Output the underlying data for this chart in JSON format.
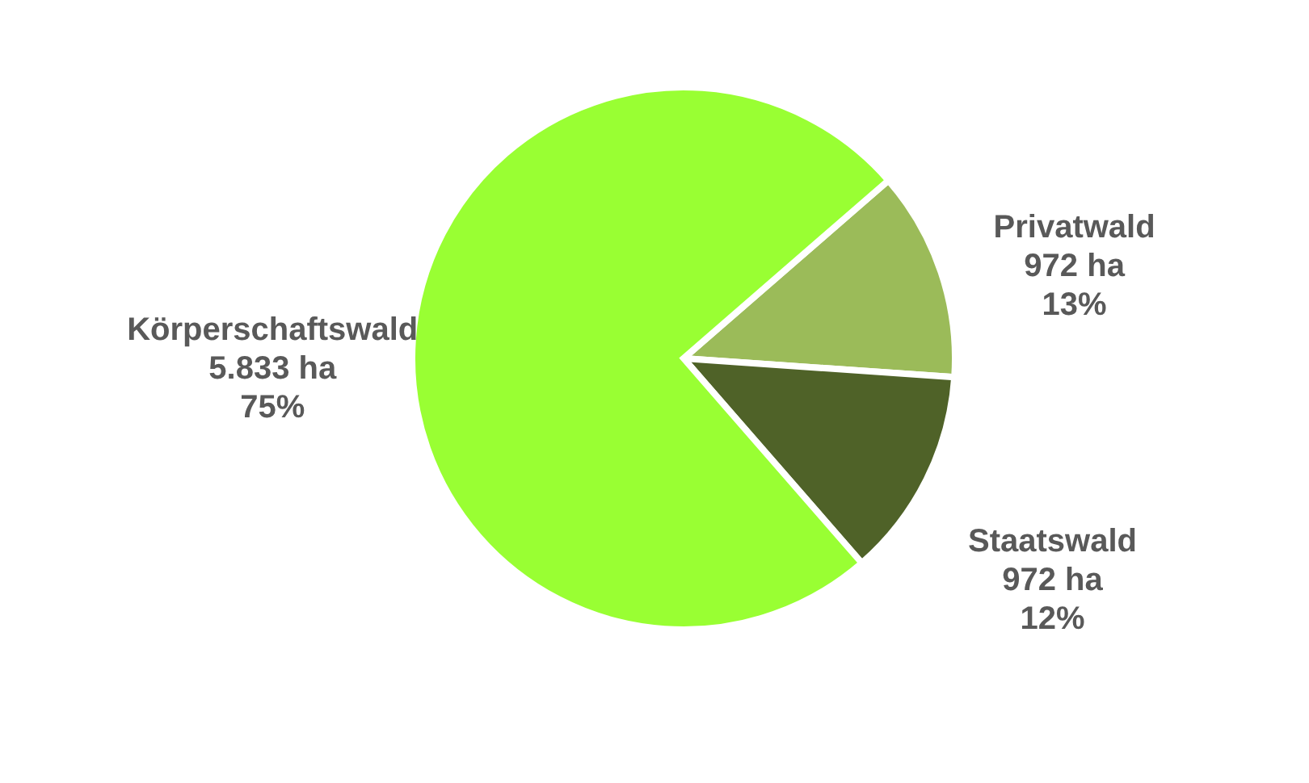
{
  "chart_data": {
    "type": "pie",
    "categories": [
      "Privatwald",
      "Staatswald",
      "Körperschaftswald"
    ],
    "values": [
      972,
      972,
      5833
    ],
    "colors": [
      "#9bbb59",
      "#4f6228",
      "#99ff33"
    ],
    "value_labels": [
      "972 ha\n13%",
      "972 ha\n12%",
      "5.833 ha\n75%"
    ],
    "legend": false
  }
}
